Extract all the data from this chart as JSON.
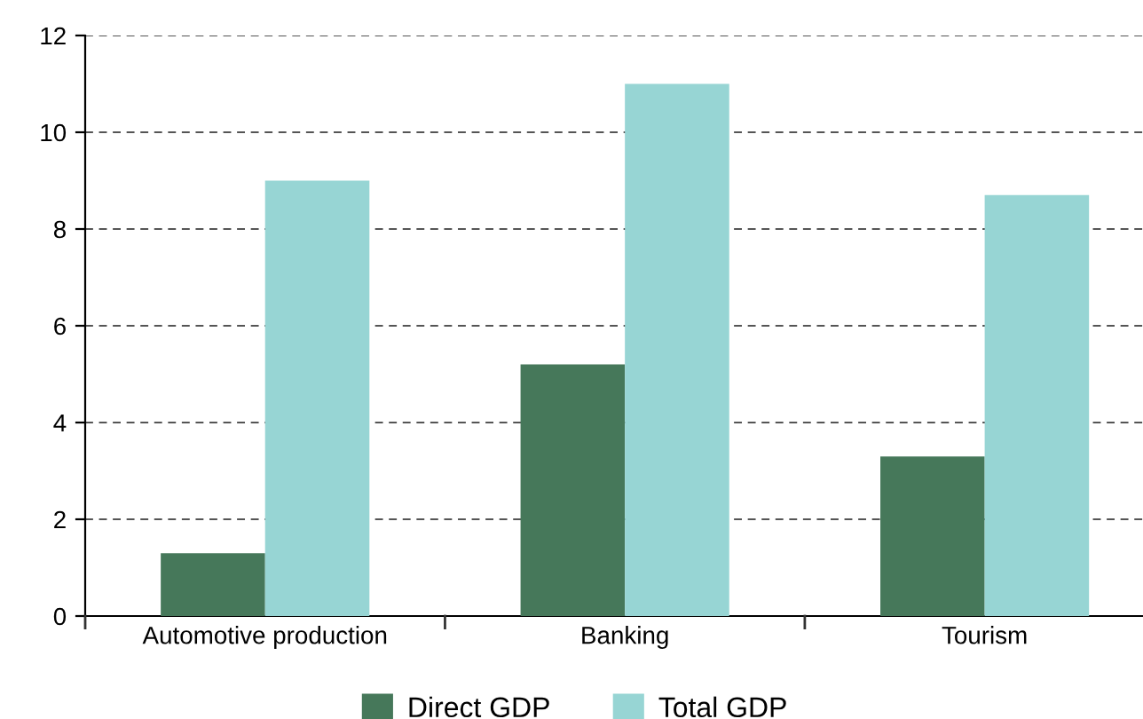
{
  "chart_data": {
    "type": "bar",
    "categories": [
      "Automotive production",
      "Banking",
      "Tourism"
    ],
    "series": [
      {
        "name": "Direct GDP",
        "color": "#46785a",
        "values": [
          1.3,
          5.2,
          3.3
        ]
      },
      {
        "name": "Total GDP",
        "color": "#97d5d4",
        "values": [
          9.0,
          11.0,
          8.7
        ]
      }
    ],
    "ylim": [
      0,
      12
    ],
    "yticks": [
      0,
      2,
      4,
      6,
      8,
      10,
      12
    ],
    "grid": "y",
    "legend": "bottom"
  }
}
